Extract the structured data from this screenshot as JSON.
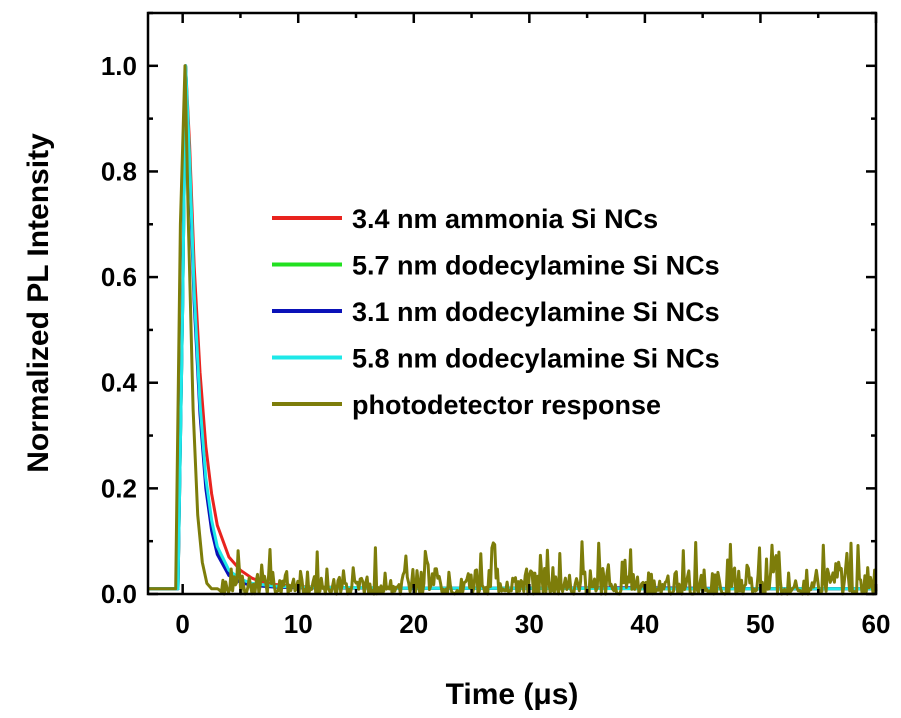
{
  "chart_data": {
    "type": "line",
    "xlabel": "Time (μs)",
    "ylabel": "Normalized PL Intensity",
    "xlim": [
      -3,
      60
    ],
    "ylim": [
      0,
      1.1
    ],
    "xticks": [
      0,
      10,
      20,
      30,
      40,
      50,
      60
    ],
    "yticks": [
      0.0,
      0.2,
      0.4,
      0.6,
      0.8,
      1.0
    ],
    "xtick_labels": [
      "0",
      "10",
      "20",
      "30",
      "40",
      "50",
      "60"
    ],
    "ytick_labels": [
      "0.0",
      "0.2",
      "0.4",
      "0.6",
      "0.8",
      "1.0"
    ],
    "grid": false,
    "legend_position": "center-right",
    "series": [
      {
        "name": "3.4 nm ammonia Si NCs",
        "color": "#e8231e",
        "x": [
          -3,
          -0.4,
          0,
          0.25,
          0.6,
          1,
          1.5,
          2,
          2.5,
          3,
          4,
          5,
          6,
          7,
          8,
          10,
          15,
          20,
          30,
          40,
          50,
          60
        ],
        "y": [
          0.01,
          0.01,
          0.6,
          1.0,
          0.85,
          0.62,
          0.42,
          0.28,
          0.19,
          0.13,
          0.07,
          0.045,
          0.03,
          0.022,
          0.018,
          0.014,
          0.012,
          0.011,
          0.011,
          0.01,
          0.01,
          0.01
        ]
      },
      {
        "name": "5.7 nm dodecylamine Si NCs",
        "color": "#22e020",
        "x": [
          -3,
          -0.4,
          0,
          0.25,
          0.6,
          1,
          1.5,
          2,
          2.5,
          3,
          4,
          5,
          6,
          8,
          10,
          20,
          30,
          40,
          50,
          60
        ],
        "y": [
          0.01,
          0.01,
          0.55,
          1.0,
          0.82,
          0.56,
          0.35,
          0.21,
          0.13,
          0.08,
          0.04,
          0.025,
          0.018,
          0.014,
          0.012,
          0.011,
          0.011,
          0.01,
          0.01,
          0.01
        ]
      },
      {
        "name": "3.1 nm dodecylamine Si NCs",
        "color": "#0a12b8",
        "x": [
          -3,
          -0.4,
          0,
          0.25,
          0.6,
          1,
          1.5,
          2,
          2.5,
          3,
          4,
          5,
          6,
          8,
          10,
          20,
          30,
          40,
          50,
          60
        ],
        "y": [
          0.01,
          0.01,
          0.55,
          1.0,
          0.8,
          0.55,
          0.34,
          0.2,
          0.12,
          0.075,
          0.035,
          0.022,
          0.016,
          0.013,
          0.012,
          0.011,
          0.011,
          0.012,
          0.01,
          0.01
        ]
      },
      {
        "name": "5.8 nm dodecylamine Si NCs",
        "color": "#1ee8e8",
        "x": [
          -3,
          -0.4,
          0,
          0.25,
          0.6,
          1,
          1.5,
          2,
          2.5,
          3,
          4,
          5,
          6,
          8,
          10,
          20,
          30,
          40,
          50,
          60
        ],
        "y": [
          0.01,
          0.01,
          0.55,
          1.0,
          0.82,
          0.57,
          0.36,
          0.22,
          0.14,
          0.09,
          0.045,
          0.028,
          0.02,
          0.015,
          0.013,
          0.011,
          0.011,
          0.01,
          0.01,
          0.01
        ]
      },
      {
        "name": "photodetector response",
        "color": "#7d7d0a",
        "x": [
          -3,
          -0.6,
          -0.2,
          0.2,
          0.5,
          0.9,
          1.3,
          1.7,
          2.1,
          2.5,
          3
        ],
        "y": [
          0.01,
          0.01,
          0.7,
          1.0,
          0.7,
          0.35,
          0.15,
          0.06,
          0.02,
          0.01,
          0.01
        ],
        "noise_amplitude": 0.1
      }
    ]
  }
}
